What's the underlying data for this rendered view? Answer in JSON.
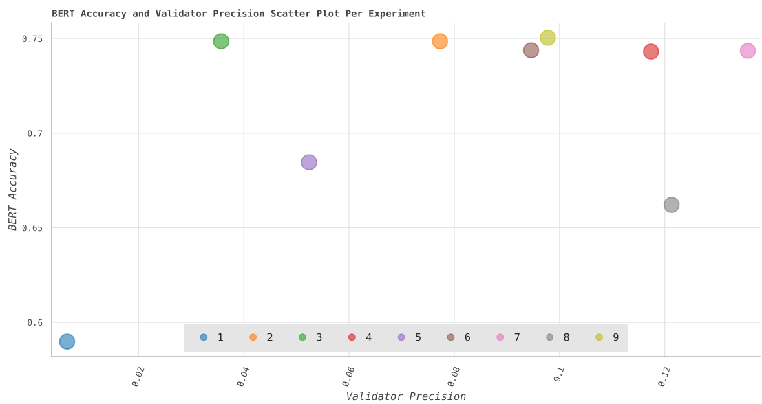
{
  "chart_data": {
    "type": "scatter",
    "title": "BERT Accuracy and Validator Precision Scatter Plot Per Experiment",
    "xlabel": "Validator Precision",
    "ylabel": "BERT Accuracy",
    "xlim": [
      0.0035,
      0.1382
    ],
    "ylim": [
      0.5818,
      0.7584
    ],
    "xticks": [
      0.02,
      0.04,
      0.06,
      0.08,
      0.1,
      0.12
    ],
    "yticks": [
      0.6,
      0.65,
      0.7,
      0.75
    ],
    "grid": true,
    "legend": "bottom",
    "marker": "circle",
    "series": [
      {
        "name": "1",
        "color": "#1f77b4",
        "x": [
          0.0064
        ],
        "values": [
          0.5898
        ]
      },
      {
        "name": "2",
        "color": "#ff7f0e",
        "x": [
          0.0773
        ],
        "values": [
          0.7485
        ]
      },
      {
        "name": "3",
        "color": "#2ca02c",
        "x": [
          0.0357
        ],
        "values": [
          0.7485
        ]
      },
      {
        "name": "4",
        "color": "#d62728",
        "x": [
          0.1174
        ],
        "values": [
          0.7431
        ]
      },
      {
        "name": "5",
        "color": "#9467bd",
        "x": [
          0.0524
        ],
        "values": [
          0.6846
        ]
      },
      {
        "name": "6",
        "color": "#8c564b",
        "x": [
          0.0946
        ],
        "values": [
          0.7438
        ]
      },
      {
        "name": "7",
        "color": "#e377c2",
        "x": [
          0.1358
        ],
        "values": [
          0.7435
        ]
      },
      {
        "name": "8",
        "color": "#7f7f7f",
        "x": [
          0.1213
        ],
        "values": [
          0.6621
        ]
      },
      {
        "name": "9",
        "color": "#bcbd22",
        "x": [
          0.0978
        ],
        "values": [
          0.7504
        ]
      }
    ]
  }
}
